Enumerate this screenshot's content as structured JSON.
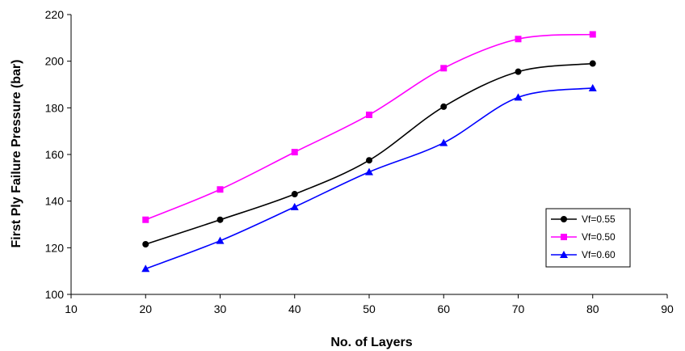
{
  "chart_data": {
    "type": "line",
    "xlabel": "No. of Layers",
    "ylabel": "First Ply Failure Pressure (bar)",
    "xlim": [
      10,
      90
    ],
    "ylim": [
      100,
      220
    ],
    "xticks": [
      10,
      20,
      30,
      40,
      50,
      60,
      70,
      80,
      90
    ],
    "yticks": [
      100,
      120,
      140,
      160,
      180,
      200,
      220
    ],
    "grid": false,
    "legend_position": "right",
    "x": [
      20,
      30,
      40,
      50,
      60,
      70,
      80
    ],
    "series": [
      {
        "name": "Vf=0.55",
        "marker": "circle",
        "color": "#000000",
        "values": [
          121.5,
          132,
          143,
          157.5,
          180.5,
          195.5,
          199
        ]
      },
      {
        "name": "Vf=0.50",
        "marker": "square",
        "color": "#ff00ff",
        "values": [
          132,
          145,
          161,
          177,
          197,
          209.5,
          211.5
        ]
      },
      {
        "name": "Vf=0.60",
        "marker": "triangle",
        "color": "#0000ff",
        "values": [
          111,
          123,
          137.5,
          152.5,
          165,
          184.5,
          188.5
        ]
      }
    ]
  }
}
